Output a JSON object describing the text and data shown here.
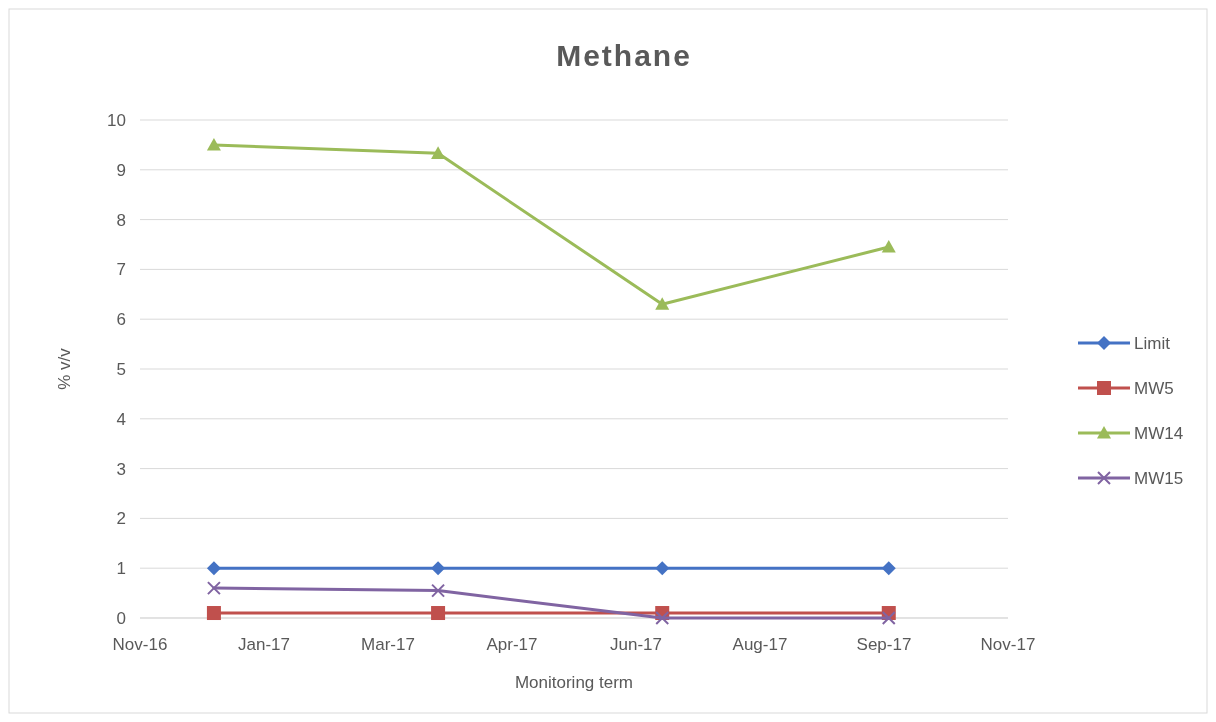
{
  "chart_data": {
    "type": "line",
    "title": "Methane",
    "xlabel": "Monitoring term",
    "ylabel": "% v/v",
    "x": [
      "2016-12-21",
      "2017-03-25",
      "2017-06-27",
      "2017-09-30"
    ],
    "series": [
      {
        "name": "Limit",
        "color": "#4472c4",
        "marker": "diamond",
        "values": [
          1,
          1,
          1,
          1
        ]
      },
      {
        "name": "MW5",
        "color": "#c0504d",
        "marker": "square",
        "values": [
          0.1,
          0.1,
          0.1,
          0.1
        ]
      },
      {
        "name": "MW14",
        "color": "#9bbb59",
        "marker": "triangle",
        "values": [
          9.5,
          9.33,
          6.3,
          7.45
        ]
      },
      {
        "name": "MW15",
        "color": "#8064a2",
        "marker": "cross",
        "values": [
          0.6,
          0.55,
          0,
          0
        ]
      }
    ],
    "xlim": [
      "2016-11-20",
      "2017-11-19"
    ],
    "xticks": [
      {
        "value": "2016-11-20",
        "label": "Nov-16"
      },
      {
        "value": "2017-01-11",
        "label": "Jan-17"
      },
      {
        "value": "2017-03-04",
        "label": "Mar-17"
      },
      {
        "value": "2017-04-25",
        "label": "Apr-17"
      },
      {
        "value": "2017-06-16",
        "label": "Jun-17"
      },
      {
        "value": "2017-08-07",
        "label": "Aug-17"
      },
      {
        "value": "2017-09-28",
        "label": "Sep-17"
      },
      {
        "value": "2017-11-19",
        "label": "Nov-17"
      }
    ],
    "ylim": [
      0,
      10
    ],
    "yticks": [
      0,
      1,
      2,
      3,
      4,
      5,
      6,
      7,
      8,
      9,
      10
    ],
    "grid": "y",
    "legend": "right",
    "line_style": "solid"
  }
}
